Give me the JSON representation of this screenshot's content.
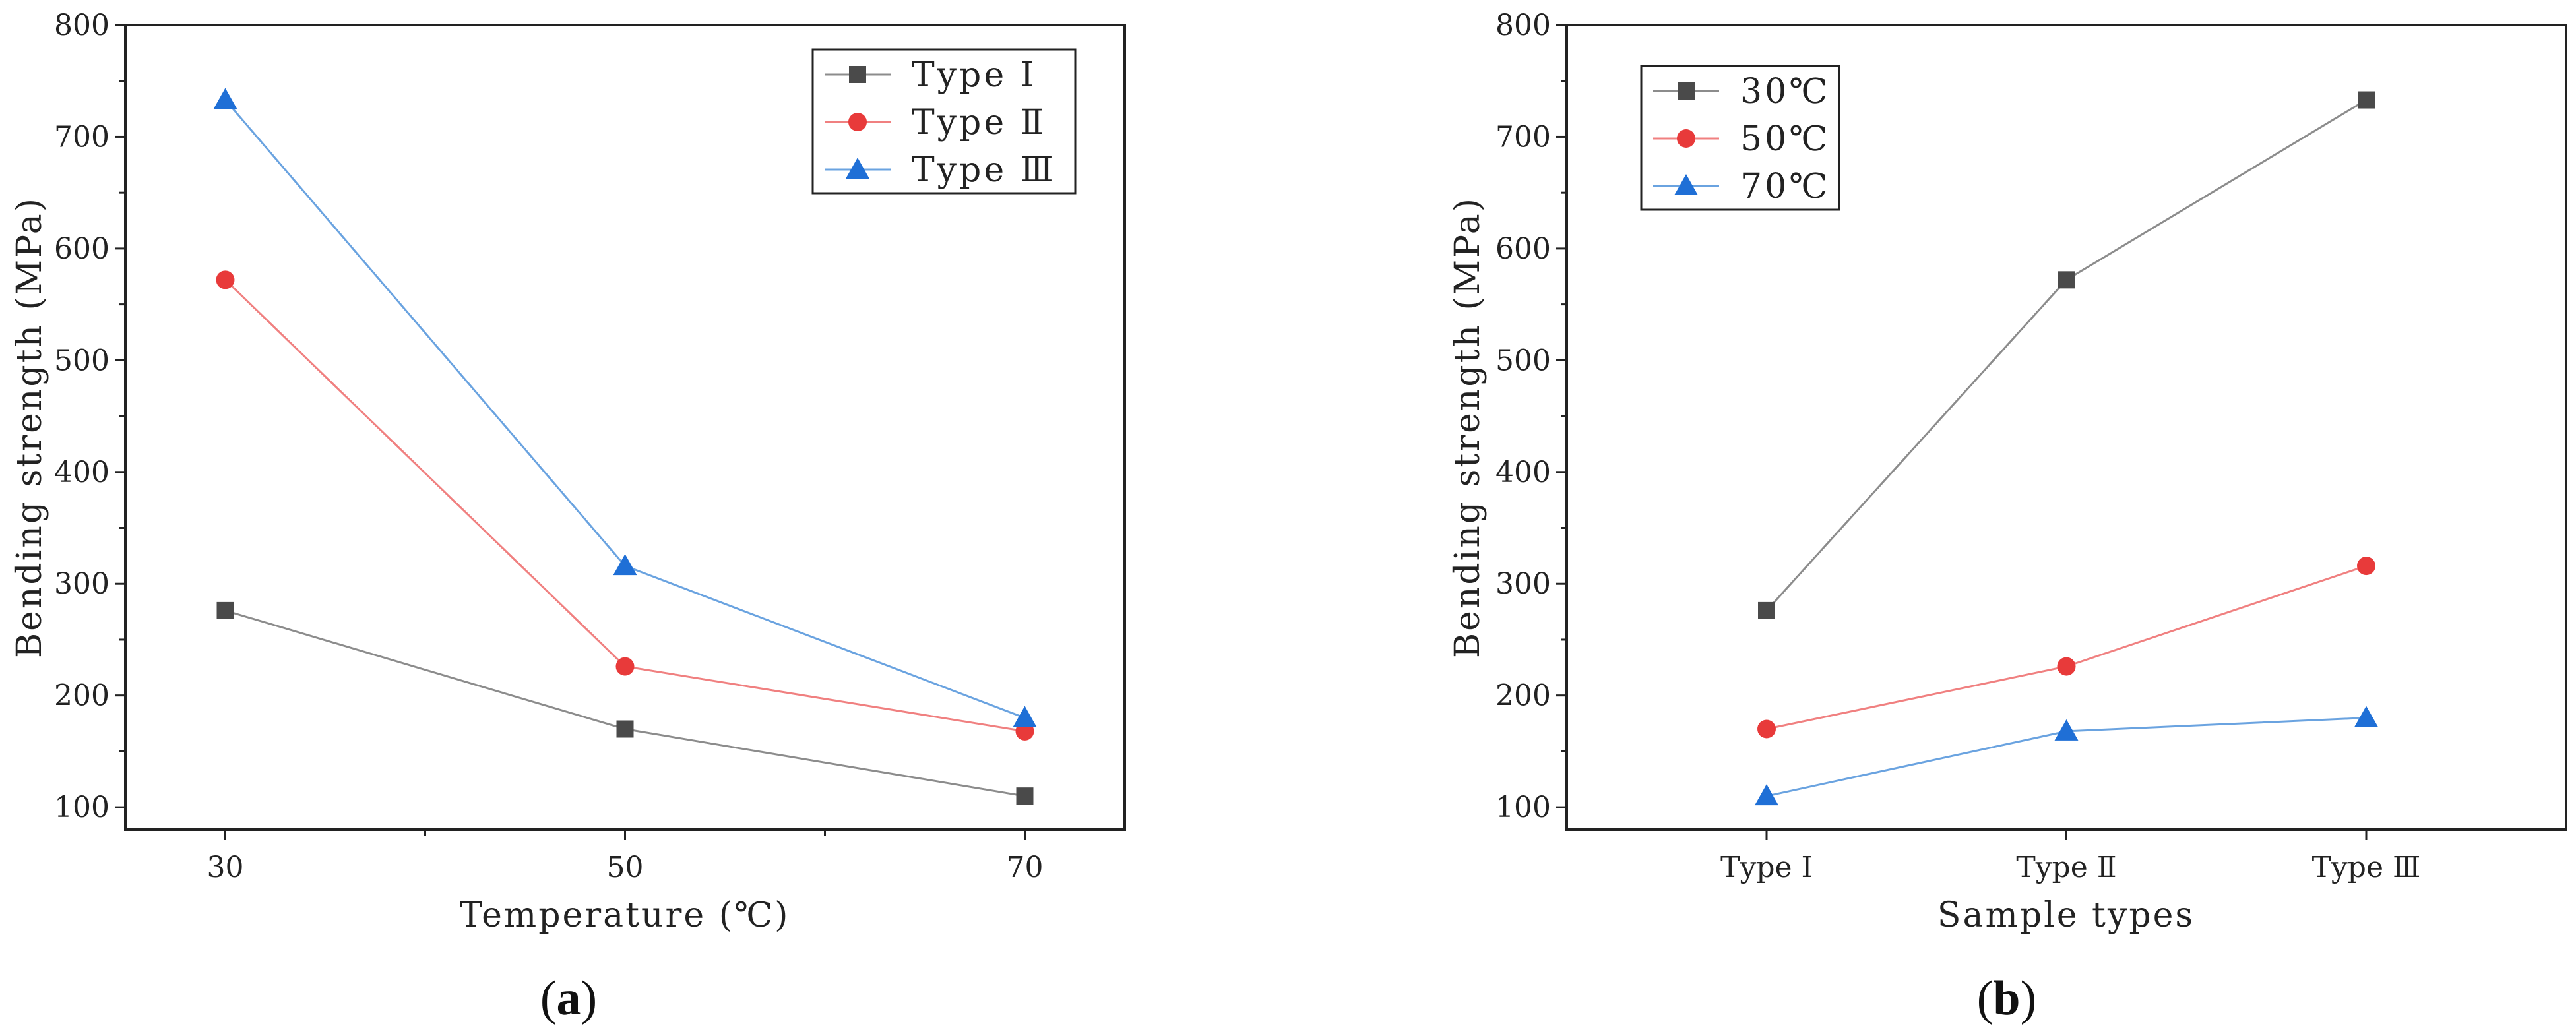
{
  "chart_data": [
    {
      "type": "line",
      "panel_label": "a",
      "xlabel": "Temperature (℃)",
      "ylabel": "Bending strength (MPa)",
      "x": [
        30,
        50,
        70
      ],
      "xticks": [
        "30",
        "50",
        "70"
      ],
      "xlim": [
        25,
        75
      ],
      "ylim": [
        80,
        800
      ],
      "yticks": [
        100,
        200,
        300,
        400,
        500,
        600,
        700,
        800
      ],
      "legend_position": "top-right",
      "grid": false,
      "series": [
        {
          "name": "Type Ⅰ",
          "marker": "square",
          "color": "#4a4a4a",
          "line_color": "#8c8c8c",
          "values": [
            276,
            170,
            110
          ]
        },
        {
          "name": "Type Ⅱ",
          "marker": "circle",
          "color": "#e83a3a",
          "line_color": "#f08080",
          "values": [
            572,
            226,
            168
          ]
        },
        {
          "name": "Type Ⅲ",
          "marker": "triangle",
          "color": "#1f6fd6",
          "line_color": "#6aa3e0",
          "values": [
            733,
            316,
            180
          ]
        }
      ]
    },
    {
      "type": "line",
      "panel_label": "b",
      "xlabel": "Sample types",
      "ylabel": "Bending strength (MPa)",
      "categories": [
        "Type Ⅰ",
        "Type Ⅱ",
        "Type Ⅲ"
      ],
      "ylim": [
        80,
        800
      ],
      "yticks": [
        100,
        200,
        300,
        400,
        500,
        600,
        700,
        800
      ],
      "legend_position": "top-left",
      "grid": false,
      "series": [
        {
          "name": "30℃",
          "marker": "square",
          "color": "#4a4a4a",
          "line_color": "#8c8c8c",
          "values": [
            276,
            572,
            733
          ]
        },
        {
          "name": "50℃",
          "marker": "circle",
          "color": "#e83a3a",
          "line_color": "#f08080",
          "values": [
            170,
            226,
            316
          ]
        },
        {
          "name": "70℃",
          "marker": "triangle",
          "color": "#1f6fd6",
          "line_color": "#6aa3e0",
          "values": [
            110,
            168,
            180
          ]
        }
      ]
    }
  ]
}
